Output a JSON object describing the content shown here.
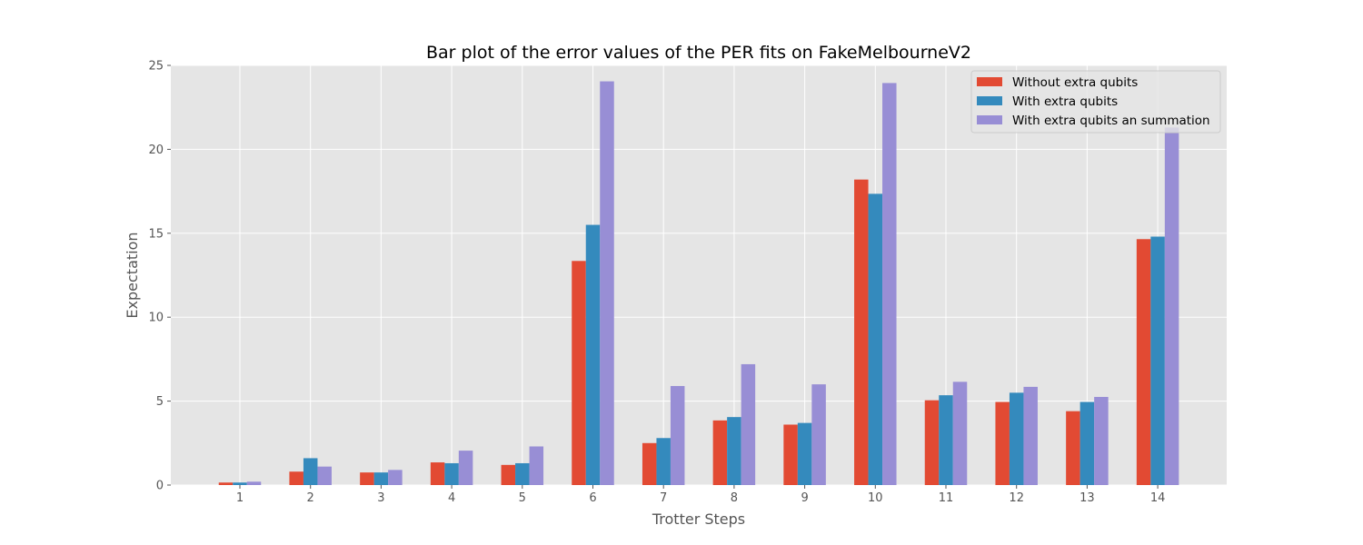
{
  "chart_data": {
    "type": "bar",
    "title": "Bar plot of the error values of the PER fits on FakeMelbourneV2",
    "xlabel": "Trotter Steps",
    "ylabel": "Expectation",
    "categories": [
      "1",
      "2",
      "3",
      "4",
      "5",
      "6",
      "7",
      "8",
      "9",
      "10",
      "11",
      "12",
      "13",
      "14"
    ],
    "ylim": [
      0,
      25
    ],
    "yticks": [
      0,
      5,
      10,
      15,
      20,
      25
    ],
    "grid": true,
    "legend_position": "top-right",
    "series": [
      {
        "name": "Without extra qubits",
        "color": "#E24A33",
        "values": [
          0.15,
          0.8,
          0.75,
          1.35,
          1.2,
          13.35,
          2.5,
          3.85,
          3.6,
          18.2,
          5.05,
          4.95,
          4.4,
          14.65
        ]
      },
      {
        "name": "With extra qubits",
        "color": "#348ABD",
        "values": [
          0.15,
          1.6,
          0.75,
          1.3,
          1.3,
          15.5,
          2.8,
          4.05,
          3.7,
          17.35,
          5.35,
          5.5,
          4.95,
          14.8
        ]
      },
      {
        "name": "With extra qubits an summation",
        "color": "#988ED5",
        "values": [
          0.2,
          1.1,
          0.9,
          2.05,
          2.3,
          24.05,
          5.9,
          7.2,
          6.0,
          23.95,
          6.15,
          5.85,
          5.25,
          21.3
        ]
      }
    ]
  }
}
